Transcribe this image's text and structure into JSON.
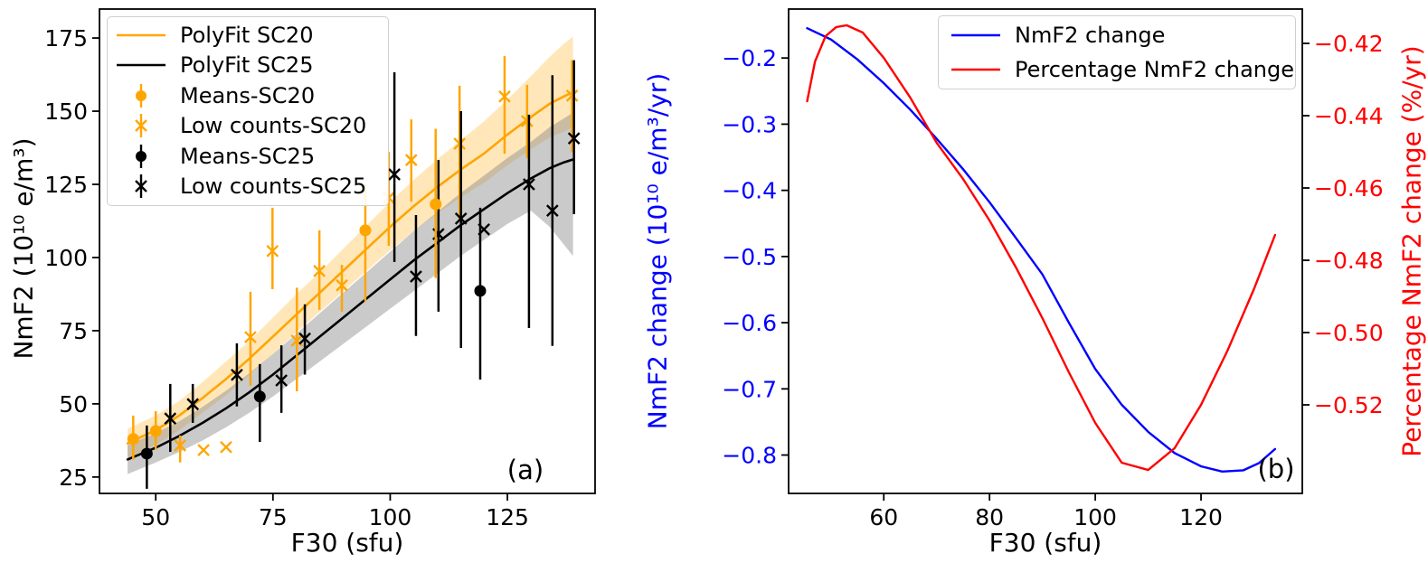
{
  "figure": {
    "background": "#ffffff",
    "kind": "two-panel scientific figure"
  },
  "chart_data": [
    {
      "id": "a",
      "type": "scatter",
      "annotation": "(a)",
      "xlabel": "F30 (sfu)",
      "ylabel": "NmF2 (10¹⁰ e/m³)",
      "xlim": [
        38,
        143.7
      ],
      "ylim": [
        19.4,
        184.9
      ],
      "grid": false,
      "xticks": {
        "values": [
          50,
          75,
          100,
          125
        ],
        "labels": [
          "50",
          "75",
          "100",
          "125"
        ]
      },
      "yticks": {
        "values": [
          25,
          50,
          75,
          100,
          125,
          150,
          175
        ],
        "labels": [
          "25",
          "50",
          "75",
          "100",
          "125",
          "150",
          "175"
        ]
      },
      "legend": {
        "position": "top-left",
        "entries": [
          "PolyFit SC20",
          "PolyFit SC25",
          "Means-SC20",
          "Low counts-SC20",
          "Means-SC25",
          "Low counts-SC25"
        ]
      },
      "series": {
        "polyfit_sc20": {
          "name": "PolyFit SC20",
          "color": "#FFA500",
          "x": [
            44,
            50,
            55,
            60,
            65,
            70,
            75,
            80,
            85,
            90,
            95,
            100,
            105,
            110,
            115,
            120,
            125,
            130,
            134,
            137,
            139
          ],
          "y": [
            36.5,
            41,
            46,
            52,
            58.5,
            65.5,
            73,
            80.5,
            88,
            95.5,
            103,
            110.5,
            117.5,
            124,
            130,
            135.5,
            142,
            148,
            152.5,
            155,
            156.5
          ]
        },
        "polyfit_sc25": {
          "name": "PolyFit SC25",
          "color": "#000000",
          "x": [
            44,
            50,
            55,
            60,
            65,
            70,
            75,
            80,
            85,
            90,
            95,
            100,
            105,
            110,
            115,
            120,
            125,
            130,
            134,
            137,
            139
          ],
          "y": [
            31,
            35,
            39,
            43.5,
            48.5,
            54,
            60,
            66.5,
            73,
            79.5,
            86,
            92.5,
            99,
            105,
            111,
            116.5,
            122,
            127,
            130.5,
            132.5,
            133.5
          ]
        },
        "band_sc20": {
          "name": "SC20 confidence band",
          "color": "#FFA500",
          "opacity": 0.27,
          "x": [
            44,
            50,
            55,
            60,
            65,
            70,
            75,
            80,
            85,
            90,
            95,
            100,
            105,
            110,
            115,
            120,
            125,
            130,
            134,
            137,
            139
          ],
          "upper": [
            41.5,
            46,
            51,
            57.5,
            64.5,
            71.5,
            79.5,
            87.5,
            95,
            103,
            111,
            119,
            126.5,
            133.5,
            140,
            146.5,
            154,
            162,
            168.5,
            173,
            175.5
          ],
          "lower": [
            31.5,
            36,
            41,
            47,
            53,
            60,
            67,
            74.5,
            81.5,
            88.5,
            95.5,
            102.5,
            109,
            115,
            120.5,
            125.5,
            131.5,
            137,
            141,
            143,
            144.5
          ]
        },
        "band_sc25": {
          "name": "SC25 confidence band",
          "color": "#808080",
          "opacity": 0.42,
          "x": [
            44,
            50,
            55,
            60,
            65,
            70,
            75,
            80,
            85,
            90,
            95,
            100,
            105,
            110,
            115,
            120,
            125,
            130,
            134,
            137,
            139
          ],
          "upper": [
            36,
            40,
            44,
            49,
            54.5,
            60.5,
            67,
            74,
            81,
            88,
            95,
            102,
            109,
            115.5,
            122,
            128,
            134,
            139.5,
            144.5,
            147.5,
            149.5
          ],
          "lower": [
            26,
            30,
            33.5,
            37.5,
            42,
            47,
            52.5,
            58.5,
            64.5,
            70.5,
            76.5,
            82.5,
            88.5,
            94.5,
            100.5,
            106,
            111.5,
            116,
            110.5,
            104.5,
            100.5
          ]
        },
        "means_sc20": {
          "name": "Means-SC20",
          "color": "#FFA500",
          "marker": "circle",
          "points": [
            [
              45.2,
              38,
              31,
              46
            ],
            [
              50,
              40.7,
              34.3,
              47.5
            ],
            [
              94.7,
              109.3,
              85,
              125
            ],
            [
              109.7,
              118.2,
              93,
              144
            ]
          ]
        },
        "low_counts_sc20": {
          "name": "Low counts-SC20",
          "color": "#FFA500",
          "marker": "x",
          "points": [
            [
              55.2,
              35.8,
              30,
              39.2
            ],
            [
              60.2,
              34.2,
              null,
              null
            ],
            [
              65,
              35.2,
              null,
              null
            ],
            [
              70.2,
              72.8,
              56.2,
              88.3
            ],
            [
              74.9,
              102.2,
              89.2,
              117
            ],
            [
              80.1,
              71.6,
              54.3,
              89.7
            ],
            [
              84.9,
              95.4,
              82.1,
              109.3
            ],
            [
              89.7,
              90.5,
              81.5,
              97.5
            ],
            [
              99.7,
              120.4,
              104,
              136.1
            ],
            [
              104.5,
              133.3,
              119.1,
              147.2
            ],
            [
              114.8,
              138.9,
              112.3,
              158.7
            ],
            [
              124.4,
              155,
              135.5,
              168.8
            ],
            [
              129.2,
              146.6,
              134,
              159
            ],
            [
              138.8,
              155.3,
              136,
              167.4
            ]
          ]
        },
        "means_sc25": {
          "name": "Means-SC25",
          "color": "#000000",
          "marker": "circle",
          "points": [
            [
              48.1,
              33,
              21,
              42.6
            ],
            [
              72.2,
              52.5,
              37,
              63.6
            ],
            [
              119.2,
              88.6,
              58.3,
              117
            ]
          ]
        },
        "low_counts_sc25": {
          "name": "Low counts-SC25",
          "color": "#000000",
          "marker": "x",
          "points": [
            [
              53.1,
              45,
              33.6,
              56.8
            ],
            [
              57.9,
              49.9,
              43.5,
              56.8
            ],
            [
              67.3,
              59.9,
              49.1,
              70.7
            ],
            [
              76.8,
              58,
              46.9,
              70
            ],
            [
              81.8,
              72.3,
              60,
              84
            ],
            [
              100.9,
              128.4,
              98.5,
              163.3
            ],
            [
              105.5,
              93.5,
              73.2,
              114.5
            ],
            [
              110.3,
              108,
              81.5,
              133.3
            ],
            [
              115.1,
              113.3,
              69.1,
              150
            ],
            [
              120,
              109.6,
              null,
              null
            ],
            [
              129.6,
              125,
              75.9,
              148.8
            ],
            [
              134.6,
              116,
              69.8,
              162.3
            ],
            [
              139.2,
              140.7,
              114.8,
              167.4
            ]
          ]
        }
      }
    },
    {
      "id": "b",
      "type": "line",
      "annotation": "(b)",
      "xlabel": "F30 (sfu)",
      "ylabel_left": "NmF2 change (10¹⁰ e/m³/yr)",
      "ylabel_right": "Percentage NmF2 change (%/yr)",
      "axis_left_color": "#0000FF",
      "axis_right_color": "#FF0000",
      "xlim": [
        42,
        139.15
      ],
      "ylim_left": [
        -0.858,
        -0.126
      ],
      "ylim_right": [
        -0.5445,
        -0.4105
      ],
      "grid": false,
      "xticks": {
        "values": [
          60,
          80,
          100,
          120
        ],
        "labels": [
          "60",
          "80",
          "100",
          "120"
        ]
      },
      "yticks_left": {
        "values": [
          -0.2,
          -0.3,
          -0.4,
          -0.5,
          -0.6,
          -0.7,
          -0.8
        ],
        "labels": [
          "−0.2",
          "−0.3",
          "−0.4",
          "−0.5",
          "−0.6",
          "−0.7",
          "−0.8"
        ]
      },
      "yticks_right": {
        "values": [
          -0.42,
          -0.44,
          -0.46,
          -0.48,
          -0.5,
          -0.52
        ],
        "labels": [
          "−0.42",
          "−0.44",
          "−0.46",
          "−0.48",
          "−0.50",
          "−0.52"
        ]
      },
      "legend": {
        "position": "top-center",
        "entries": [
          "NmF2 change",
          "Percentage NmF2 change"
        ]
      },
      "series": {
        "nmf2_change": {
          "name": "NmF2 change",
          "color": "#0000FF",
          "axis": "left",
          "x": [
            45.5,
            50,
            55,
            60,
            65,
            70,
            75,
            80,
            85,
            90,
            95,
            100,
            105,
            110,
            115,
            120,
            124,
            128,
            131,
            134
          ],
          "y": [
            -0.155,
            -0.172,
            -0.202,
            -0.238,
            -0.278,
            -0.322,
            -0.368,
            -0.418,
            -0.472,
            -0.527,
            -0.6,
            -0.67,
            -0.724,
            -0.765,
            -0.797,
            -0.817,
            -0.825,
            -0.823,
            -0.812,
            -0.791
          ]
        },
        "percentage_nmf2_change": {
          "name": "Percentage NmF2 change",
          "color": "#FF0000",
          "axis": "right",
          "x": [
            45.5,
            47,
            49,
            51,
            53,
            56,
            60,
            65,
            70,
            75,
            80,
            85,
            90,
            95,
            100,
            105,
            110,
            115,
            120,
            125,
            130,
            134
          ],
          "y": [
            -0.436,
            -0.425,
            -0.418,
            -0.4155,
            -0.415,
            -0.417,
            -0.424,
            -0.435,
            -0.4475,
            -0.4575,
            -0.469,
            -0.482,
            -0.496,
            -0.511,
            -0.525,
            -0.536,
            -0.538,
            -0.532,
            -0.52,
            -0.505,
            -0.488,
            -0.473
          ]
        }
      }
    }
  ]
}
